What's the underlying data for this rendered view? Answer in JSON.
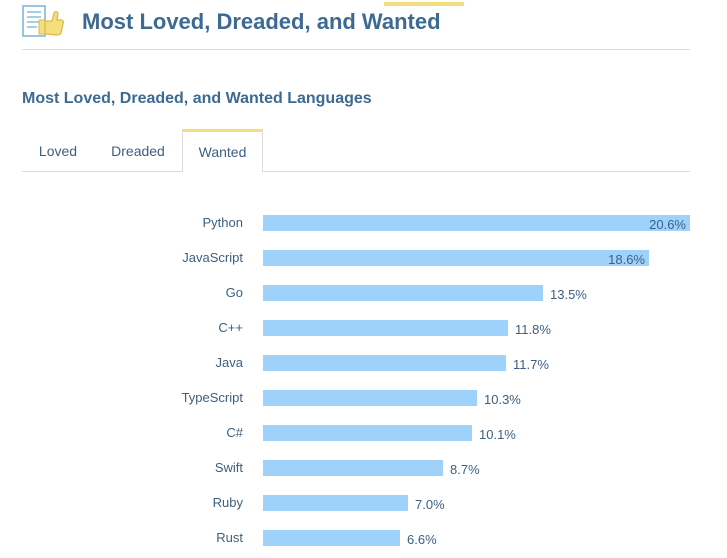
{
  "header": {
    "title": "Most Loved, Dreaded, and Wanted",
    "icon": "thumbs-up-document-icon"
  },
  "tabs": [
    {
      "label": "Loved",
      "active": false
    },
    {
      "label": "Dreaded",
      "active": false
    },
    {
      "label": "Wanted",
      "active": true
    }
  ],
  "colors": {
    "accent": "#f3df7e",
    "bar": "#9ed2fb",
    "title": "#3d6a93",
    "text": "#3e5f7f",
    "divider": "#d9dde1"
  },
  "chart_data": {
    "type": "bar",
    "orientation": "horizontal",
    "title": "Most Loved, Dreaded, and Wanted Languages",
    "categories": [
      "Python",
      "JavaScript",
      "Go",
      "C++",
      "Java",
      "TypeScript",
      "C#",
      "Swift",
      "Ruby",
      "Rust"
    ],
    "values": [
      20.6,
      18.6,
      13.5,
      11.8,
      11.7,
      10.3,
      10.1,
      8.7,
      7.0,
      6.6
    ],
    "value_labels": [
      "20.6%",
      "18.6%",
      "13.5%",
      "11.8%",
      "11.7%",
      "10.3%",
      "10.1%",
      "8.7%",
      "7.0%",
      "6.6%"
    ],
    "value_unit": "%",
    "xlim": [
      0,
      20.6
    ],
    "grid": false,
    "legend": "none"
  }
}
